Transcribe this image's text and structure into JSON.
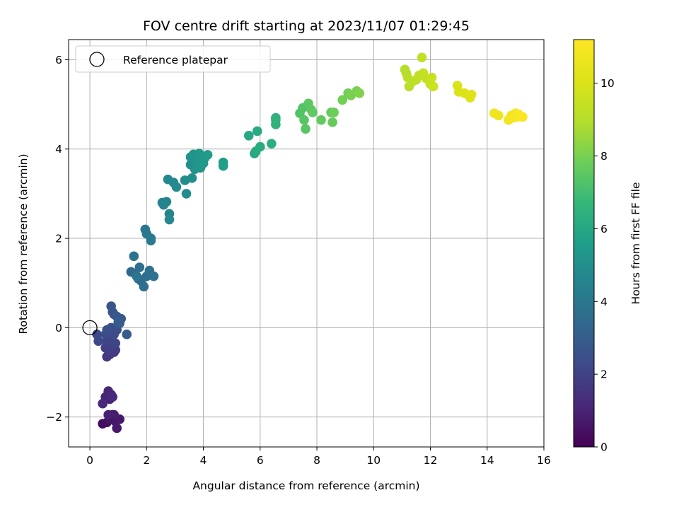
{
  "chart_data": {
    "type": "scatter",
    "title": "FOV centre drift starting at 2023/11/07 01:29:45",
    "xlabel": "Angular distance from reference (arcmin)",
    "ylabel": "Rotation from reference (arcmin)",
    "xlim": [
      -0.75,
      16
    ],
    "ylim": [
      -2.67,
      6.45
    ],
    "xticks": [
      0,
      2,
      4,
      6,
      8,
      10,
      12,
      14,
      16
    ],
    "yticks": [
      -2,
      0,
      2,
      4,
      6
    ],
    "grid": true,
    "legend": {
      "entries": [
        "Reference platepar"
      ],
      "position": "top-left"
    },
    "reference_point": {
      "x": 0,
      "y": 0,
      "label": "Reference platepar"
    },
    "colorbar": {
      "label": "Hours from first FF file",
      "colormap": "viridis",
      "range": [
        0,
        11.2
      ],
      "ticks": [
        0,
        2,
        4,
        6,
        8,
        10
      ]
    },
    "points": [
      {
        "x": 0.45,
        "y": -2.15,
        "h": 0.3
      },
      {
        "x": 0.6,
        "y": -2.12,
        "h": 0.4
      },
      {
        "x": 0.75,
        "y": -2.05,
        "h": 0.5
      },
      {
        "x": 0.8,
        "y": -1.95,
        "h": 0.5
      },
      {
        "x": 0.7,
        "y": -2.05,
        "h": 0.6
      },
      {
        "x": 0.9,
        "y": -2.1,
        "h": 0.6
      },
      {
        "x": 0.95,
        "y": -2.25,
        "h": 0.7
      },
      {
        "x": 1.05,
        "y": -2.05,
        "h": 0.7
      },
      {
        "x": 0.85,
        "y": -1.95,
        "h": 0.8
      },
      {
        "x": 0.65,
        "y": -1.95,
        "h": 0.9
      },
      {
        "x": 0.7,
        "y": -1.6,
        "h": 1.0
      },
      {
        "x": 0.55,
        "y": -1.55,
        "h": 1.0
      },
      {
        "x": 0.65,
        "y": -1.42,
        "h": 1.1
      },
      {
        "x": 0.75,
        "y": -1.5,
        "h": 1.1
      },
      {
        "x": 0.8,
        "y": -1.55,
        "h": 1.2
      },
      {
        "x": 0.45,
        "y": -1.7,
        "h": 1.2
      },
      {
        "x": 0.6,
        "y": -0.65,
        "h": 1.6
      },
      {
        "x": 0.7,
        "y": -0.6,
        "h": 1.7
      },
      {
        "x": 0.85,
        "y": -0.55,
        "h": 1.7
      },
      {
        "x": 0.9,
        "y": -0.5,
        "h": 1.8
      },
      {
        "x": 0.55,
        "y": -0.45,
        "h": 1.8
      },
      {
        "x": 0.65,
        "y": -0.5,
        "h": 1.9
      },
      {
        "x": 0.75,
        "y": -0.4,
        "h": 1.9
      },
      {
        "x": 0.6,
        "y": -0.3,
        "h": 2.0
      },
      {
        "x": 0.9,
        "y": -0.35,
        "h": 2.0
      },
      {
        "x": 0.8,
        "y": -0.3,
        "h": 2.1
      },
      {
        "x": 0.7,
        "y": -0.2,
        "h": 2.1
      },
      {
        "x": 0.3,
        "y": -0.3,
        "h": 2.2
      },
      {
        "x": 0.25,
        "y": -0.15,
        "h": 2.2
      },
      {
        "x": 0.55,
        "y": -0.15,
        "h": 2.3
      },
      {
        "x": 0.85,
        "y": -0.15,
        "h": 2.3
      },
      {
        "x": 0.75,
        "y": 0.0,
        "h": 2.4
      },
      {
        "x": 0.95,
        "y": -0.05,
        "h": 2.4
      },
      {
        "x": 0.6,
        "y": -0.05,
        "h": 2.5
      },
      {
        "x": 0.85,
        "y": 0.3,
        "h": 2.6
      },
      {
        "x": 0.8,
        "y": 0.35,
        "h": 2.6
      },
      {
        "x": 0.75,
        "y": 0.48,
        "h": 2.7
      },
      {
        "x": 0.95,
        "y": 0.25,
        "h": 2.7
      },
      {
        "x": 1.1,
        "y": 0.2,
        "h": 2.8
      },
      {
        "x": 1.05,
        "y": 0.1,
        "h": 2.8
      },
      {
        "x": 1.0,
        "y": 0.12,
        "h": 2.9
      },
      {
        "x": 1.3,
        "y": -0.15,
        "h": 2.9
      },
      {
        "x": 1.45,
        "y": 1.25,
        "h": 3.4
      },
      {
        "x": 1.6,
        "y": 1.2,
        "h": 3.4
      },
      {
        "x": 1.7,
        "y": 1.1,
        "h": 3.5
      },
      {
        "x": 1.8,
        "y": 1.05,
        "h": 3.5
      },
      {
        "x": 1.9,
        "y": 0.92,
        "h": 3.6
      },
      {
        "x": 1.75,
        "y": 1.35,
        "h": 3.6
      },
      {
        "x": 2.0,
        "y": 1.15,
        "h": 3.7
      },
      {
        "x": 2.1,
        "y": 1.28,
        "h": 3.7
      },
      {
        "x": 2.25,
        "y": 1.15,
        "h": 3.8
      },
      {
        "x": 1.55,
        "y": 1.6,
        "h": 3.8
      },
      {
        "x": 1.65,
        "y": 1.15,
        "h": 3.9
      },
      {
        "x": 1.95,
        "y": 2.2,
        "h": 4.0
      },
      {
        "x": 2.0,
        "y": 2.1,
        "h": 4.0
      },
      {
        "x": 2.15,
        "y": 2.0,
        "h": 4.1
      },
      {
        "x": 2.15,
        "y": 1.95,
        "h": 4.1
      },
      {
        "x": 2.55,
        "y": 2.8,
        "h": 4.5
      },
      {
        "x": 2.6,
        "y": 2.75,
        "h": 4.5
      },
      {
        "x": 2.7,
        "y": 2.82,
        "h": 4.6
      },
      {
        "x": 2.8,
        "y": 2.55,
        "h": 4.6
      },
      {
        "x": 2.8,
        "y": 2.42,
        "h": 4.7
      },
      {
        "x": 2.75,
        "y": 3.32,
        "h": 4.7
      },
      {
        "x": 2.95,
        "y": 3.25,
        "h": 4.8
      },
      {
        "x": 3.05,
        "y": 3.15,
        "h": 4.8
      },
      {
        "x": 3.35,
        "y": 3.3,
        "h": 4.9
      },
      {
        "x": 3.4,
        "y": 3.0,
        "h": 4.9
      },
      {
        "x": 3.6,
        "y": 3.35,
        "h": 5.0
      },
      {
        "x": 3.55,
        "y": 3.65,
        "h": 5.0
      },
      {
        "x": 3.7,
        "y": 3.55,
        "h": 5.1
      },
      {
        "x": 3.55,
        "y": 3.82,
        "h": 5.1
      },
      {
        "x": 3.65,
        "y": 3.88,
        "h": 5.2
      },
      {
        "x": 3.75,
        "y": 3.75,
        "h": 5.2
      },
      {
        "x": 3.85,
        "y": 3.9,
        "h": 5.3
      },
      {
        "x": 3.9,
        "y": 3.58,
        "h": 5.3
      },
      {
        "x": 4.0,
        "y": 3.68,
        "h": 5.4
      },
      {
        "x": 4.05,
        "y": 3.8,
        "h": 5.4
      },
      {
        "x": 4.15,
        "y": 3.87,
        "h": 5.5
      },
      {
        "x": 4.7,
        "y": 3.7,
        "h": 5.5
      },
      {
        "x": 4.7,
        "y": 3.62,
        "h": 5.6
      },
      {
        "x": 5.6,
        "y": 4.3,
        "h": 6.0
      },
      {
        "x": 5.8,
        "y": 3.9,
        "h": 6.0
      },
      {
        "x": 5.85,
        "y": 3.95,
        "h": 6.1
      },
      {
        "x": 5.9,
        "y": 4.4,
        "h": 6.1
      },
      {
        "x": 6.0,
        "y": 4.05,
        "h": 6.2
      },
      {
        "x": 6.4,
        "y": 4.12,
        "h": 6.3
      },
      {
        "x": 6.55,
        "y": 4.55,
        "h": 6.4
      },
      {
        "x": 6.55,
        "y": 4.65,
        "h": 6.5
      },
      {
        "x": 6.55,
        "y": 4.7,
        "h": 6.5
      },
      {
        "x": 7.4,
        "y": 4.8,
        "h": 7.3
      },
      {
        "x": 7.5,
        "y": 4.92,
        "h": 7.3
      },
      {
        "x": 7.55,
        "y": 4.65,
        "h": 7.4
      },
      {
        "x": 7.6,
        "y": 4.45,
        "h": 7.4
      },
      {
        "x": 7.7,
        "y": 5.02,
        "h": 7.5
      },
      {
        "x": 7.8,
        "y": 4.88,
        "h": 7.5
      },
      {
        "x": 7.85,
        "y": 4.82,
        "h": 7.6
      },
      {
        "x": 8.15,
        "y": 4.65,
        "h": 7.6
      },
      {
        "x": 8.5,
        "y": 4.82,
        "h": 7.7
      },
      {
        "x": 8.55,
        "y": 4.6,
        "h": 7.7
      },
      {
        "x": 8.6,
        "y": 4.82,
        "h": 7.8
      },
      {
        "x": 8.9,
        "y": 5.1,
        "h": 7.9
      },
      {
        "x": 9.1,
        "y": 5.25,
        "h": 7.9
      },
      {
        "x": 9.2,
        "y": 5.2,
        "h": 8.0
      },
      {
        "x": 9.4,
        "y": 5.3,
        "h": 8.0
      },
      {
        "x": 9.5,
        "y": 5.25,
        "h": 8.1
      },
      {
        "x": 11.1,
        "y": 5.78,
        "h": 9.0
      },
      {
        "x": 11.15,
        "y": 5.7,
        "h": 9.0
      },
      {
        "x": 11.2,
        "y": 5.6,
        "h": 9.1
      },
      {
        "x": 11.25,
        "y": 5.4,
        "h": 9.1
      },
      {
        "x": 11.35,
        "y": 5.5,
        "h": 9.2
      },
      {
        "x": 11.5,
        "y": 5.55,
        "h": 9.2
      },
      {
        "x": 11.6,
        "y": 5.65,
        "h": 9.3
      },
      {
        "x": 11.7,
        "y": 6.05,
        "h": 9.3
      },
      {
        "x": 11.75,
        "y": 5.7,
        "h": 9.4
      },
      {
        "x": 11.85,
        "y": 5.58,
        "h": 9.4
      },
      {
        "x": 12.0,
        "y": 5.45,
        "h": 9.5
      },
      {
        "x": 12.05,
        "y": 5.6,
        "h": 9.5
      },
      {
        "x": 12.1,
        "y": 5.4,
        "h": 9.6
      },
      {
        "x": 12.95,
        "y": 5.42,
        "h": 10.0
      },
      {
        "x": 13.0,
        "y": 5.28,
        "h": 10.0
      },
      {
        "x": 13.2,
        "y": 5.25,
        "h": 10.1
      },
      {
        "x": 13.35,
        "y": 5.2,
        "h": 10.1
      },
      {
        "x": 13.4,
        "y": 5.15,
        "h": 10.2
      },
      {
        "x": 13.45,
        "y": 5.22,
        "h": 10.2
      },
      {
        "x": 14.25,
        "y": 4.8,
        "h": 10.7
      },
      {
        "x": 14.4,
        "y": 4.75,
        "h": 10.7
      },
      {
        "x": 14.75,
        "y": 4.65,
        "h": 10.8
      },
      {
        "x": 14.85,
        "y": 4.75,
        "h": 10.8
      },
      {
        "x": 14.9,
        "y": 4.7,
        "h": 10.9
      },
      {
        "x": 15.0,
        "y": 4.8,
        "h": 10.9
      },
      {
        "x": 15.05,
        "y": 4.72,
        "h": 11.0
      },
      {
        "x": 15.1,
        "y": 4.78,
        "h": 11.0
      },
      {
        "x": 15.25,
        "y": 4.72,
        "h": 11.1
      }
    ]
  }
}
